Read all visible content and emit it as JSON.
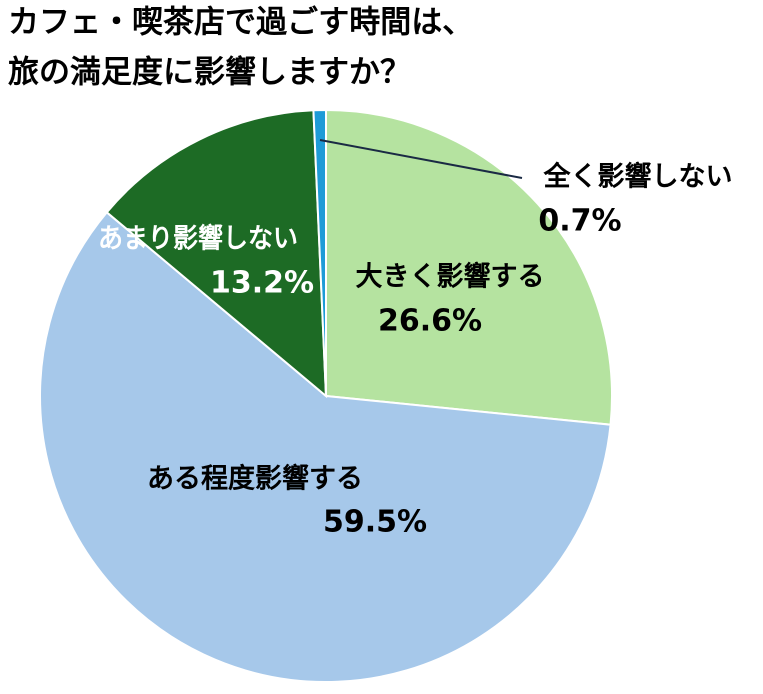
{
  "chart_data": {
    "type": "pie",
    "title": [
      "カフェ・喫茶店で過ごす時間は、",
      "旅の満足度に影響しますか？"
    ],
    "categories": [
      "大きく影響する",
      "ある程度影響する",
      "あまり影響しない",
      "全く影響しない"
    ],
    "values": [
      26.6,
      59.5,
      13.2,
      0.7
    ],
    "value_labels": [
      "26.6%",
      "59.5%",
      "13.2%",
      "0.7%"
    ],
    "colors": [
      "#b5e3a0",
      "#a6c8ea",
      "#1d6b25",
      "#1e9bd7"
    ]
  }
}
